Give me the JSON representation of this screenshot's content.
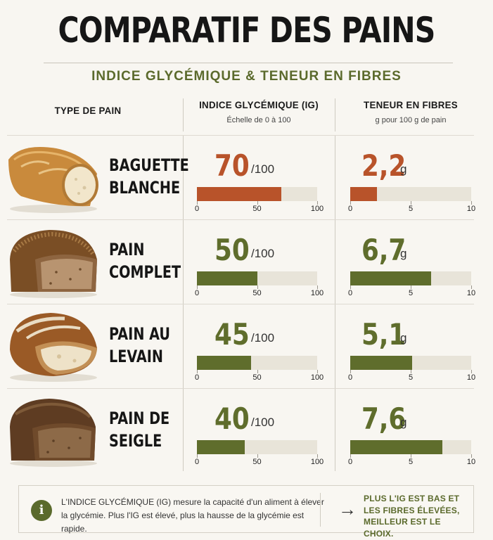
{
  "title": "COMPARATIF DES PAINS",
  "subtitle": "INDICE GLYCÉMIQUE & TENEUR EN FIBRES",
  "columns": {
    "type": "TYPE DE PAIN",
    "ig": {
      "title": "INDICE GLYCÉMIQUE (IG)",
      "subtitle": "Échelle de 0 à 100"
    },
    "fibres": {
      "title": "TENEUR EN FIBRES",
      "subtitle": "g pour 100 g de pain"
    }
  },
  "colors": {
    "high": "#b8532a",
    "ok": "#5f6d2c",
    "track": "#e8e4d9"
  },
  "chart_data": [
    {
      "type": "bar",
      "title": "INDICE GLYCÉMIQUE (IG)",
      "categories": [
        "BAGUETTE BLANCHE",
        "PAIN COMPLET",
        "PAIN AU LEVAIN",
        "PAIN DE SEIGLE"
      ],
      "values": [
        70,
        50,
        45,
        40
      ],
      "unit": "/100",
      "xlim": [
        0,
        100
      ],
      "ticks": [
        "0",
        "50",
        "100"
      ]
    },
    {
      "type": "bar",
      "title": "TENEUR EN FIBRES",
      "categories": [
        "BAGUETTE BLANCHE",
        "PAIN COMPLET",
        "PAIN AU LEVAIN",
        "PAIN DE SEIGLE"
      ],
      "values": [
        2.2,
        6.7,
        5.1,
        7.6
      ],
      "unit": "g",
      "xlim": [
        0,
        10
      ],
      "ticks": [
        "0",
        "5",
        "10"
      ]
    }
  ],
  "rows": [
    {
      "name": "BAGUETTE\nBLANCHE",
      "ig_label": "70",
      "ig_unit": "/100",
      "fib_label": "2,2",
      "fib_unit": "g",
      "color": "#b8532a",
      "bread": "baguette"
    },
    {
      "name": "PAIN\nCOMPLET",
      "ig_label": "50",
      "ig_unit": "/100",
      "fib_label": "6,7",
      "fib_unit": "g",
      "color": "#5f6d2c",
      "bread": "complet"
    },
    {
      "name": "PAIN AU\nLEVAIN",
      "ig_label": "45",
      "ig_unit": "/100",
      "fib_label": "5,1",
      "fib_unit": "g",
      "color": "#5f6d2c",
      "bread": "levain"
    },
    {
      "name": "PAIN DE\nSEIGLE",
      "ig_label": "40",
      "ig_unit": "/100",
      "fib_label": "7,6",
      "fib_unit": "g",
      "color": "#5f6d2c",
      "bread": "seigle"
    }
  ],
  "info": {
    "icon": "info-icon",
    "text": "L'INDICE GLYCÉMIQUE (IG) mesure la capacité d'un aliment à élever la glycémie. Plus l'IG est élevé, plus la hausse de la glycémie est rapide.",
    "arrow": "→",
    "conclusion": "PLUS L'IG EST BAS ET LES FIBRES ÉLEVÉES, MEILLEUR EST LE CHOIX."
  }
}
